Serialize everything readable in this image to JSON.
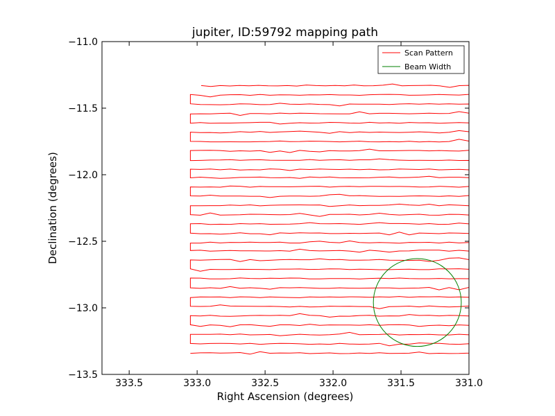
{
  "chart_data": {
    "type": "line",
    "title": "jupiter, ID:59792 mapping path",
    "xlabel": "Right Ascension (degrees)",
    "ylabel": "Declination (degrees)",
    "xlim": [
      333.7,
      331.0
    ],
    "ylim": [
      -13.5,
      -11.0
    ],
    "x_inverted": true,
    "xticks": [
      "333.5",
      "333.0",
      "332.5",
      "332.0",
      "331.5",
      "331.0"
    ],
    "yticks": [
      "−11.0",
      "−11.5",
      "−12.0",
      "−12.5",
      "−13.0",
      "−13.5"
    ],
    "legend_position": "top-right",
    "grid": false,
    "series": [
      {
        "name": "Scan Pattern",
        "color": "#ff0000",
        "kind": "raster-scan",
        "ra_east": 333.05,
        "ra_west": 331.0,
        "dec_rows": [
          -11.33,
          -11.4,
          -11.47,
          -11.54,
          -11.61,
          -11.68,
          -11.75,
          -11.82,
          -11.89,
          -11.96,
          -12.02,
          -12.09,
          -12.16,
          -12.23,
          -12.3,
          -12.37,
          -12.44,
          -12.51,
          -12.57,
          -12.64,
          -12.71,
          -12.78,
          -12.85,
          -12.92,
          -12.99,
          -13.06,
          -13.13,
          -13.2,
          -13.27,
          -13.34
        ]
      },
      {
        "name": "Beam Width",
        "color": "#008000",
        "kind": "circle",
        "center": [
          331.38,
          -12.96
        ],
        "radius_dec": 0.33
      }
    ]
  }
}
